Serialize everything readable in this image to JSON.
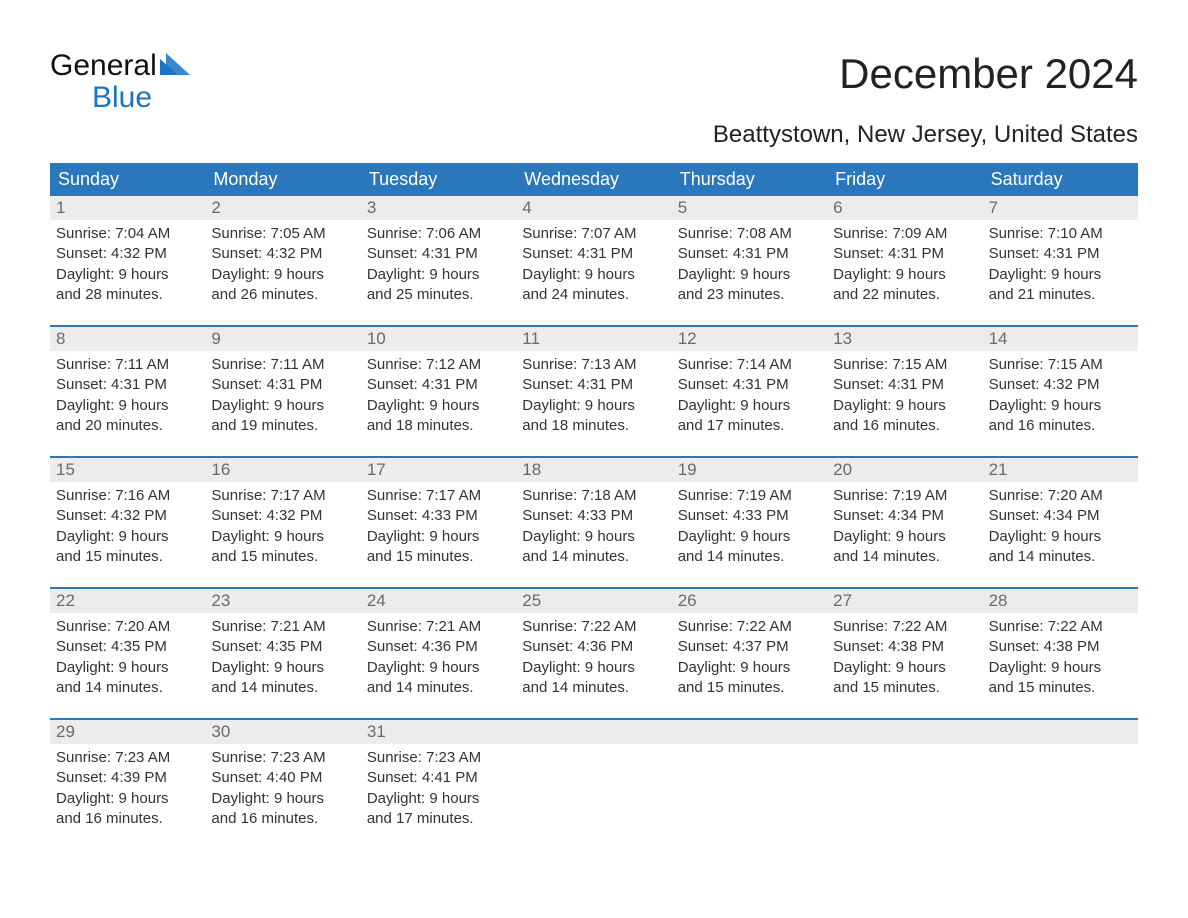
{
  "logo": {
    "word1": "General",
    "word2": "Blue"
  },
  "title": "December 2024",
  "location": "Beattystown, New Jersey, United States",
  "colors": {
    "header_bg": "#2b77bb",
    "header_text": "#ffffff",
    "daynum_bg": "#ececec",
    "daynum_text": "#6a6a6a",
    "body_text": "#333333",
    "logo_blue": "#1a73c7",
    "divider": "#2b77bb",
    "background": "#ffffff"
  },
  "typography": {
    "title_fontsize": 42,
    "location_fontsize": 24,
    "dow_fontsize": 18,
    "daynum_fontsize": 17,
    "cell_fontsize": 15,
    "logo_fontsize": 30
  },
  "days_of_week": [
    "Sunday",
    "Monday",
    "Tuesday",
    "Wednesday",
    "Thursday",
    "Friday",
    "Saturday"
  ],
  "labels": {
    "sunrise": "Sunrise:",
    "sunset": "Sunset:",
    "daylight": "Daylight:"
  },
  "weeks": [
    [
      {
        "d": "1",
        "sr": "7:04 AM",
        "ss": "4:32 PM",
        "dl1": "9 hours",
        "dl2": "and 28 minutes."
      },
      {
        "d": "2",
        "sr": "7:05 AM",
        "ss": "4:32 PM",
        "dl1": "9 hours",
        "dl2": "and 26 minutes."
      },
      {
        "d": "3",
        "sr": "7:06 AM",
        "ss": "4:31 PM",
        "dl1": "9 hours",
        "dl2": "and 25 minutes."
      },
      {
        "d": "4",
        "sr": "7:07 AM",
        "ss": "4:31 PM",
        "dl1": "9 hours",
        "dl2": "and 24 minutes."
      },
      {
        "d": "5",
        "sr": "7:08 AM",
        "ss": "4:31 PM",
        "dl1": "9 hours",
        "dl2": "and 23 minutes."
      },
      {
        "d": "6",
        "sr": "7:09 AM",
        "ss": "4:31 PM",
        "dl1": "9 hours",
        "dl2": "and 22 minutes."
      },
      {
        "d": "7",
        "sr": "7:10 AM",
        "ss": "4:31 PM",
        "dl1": "9 hours",
        "dl2": "and 21 minutes."
      }
    ],
    [
      {
        "d": "8",
        "sr": "7:11 AM",
        "ss": "4:31 PM",
        "dl1": "9 hours",
        "dl2": "and 20 minutes."
      },
      {
        "d": "9",
        "sr": "7:11 AM",
        "ss": "4:31 PM",
        "dl1": "9 hours",
        "dl2": "and 19 minutes."
      },
      {
        "d": "10",
        "sr": "7:12 AM",
        "ss": "4:31 PM",
        "dl1": "9 hours",
        "dl2": "and 18 minutes."
      },
      {
        "d": "11",
        "sr": "7:13 AM",
        "ss": "4:31 PM",
        "dl1": "9 hours",
        "dl2": "and 18 minutes."
      },
      {
        "d": "12",
        "sr": "7:14 AM",
        "ss": "4:31 PM",
        "dl1": "9 hours",
        "dl2": "and 17 minutes."
      },
      {
        "d": "13",
        "sr": "7:15 AM",
        "ss": "4:31 PM",
        "dl1": "9 hours",
        "dl2": "and 16 minutes."
      },
      {
        "d": "14",
        "sr": "7:15 AM",
        "ss": "4:32 PM",
        "dl1": "9 hours",
        "dl2": "and 16 minutes."
      }
    ],
    [
      {
        "d": "15",
        "sr": "7:16 AM",
        "ss": "4:32 PM",
        "dl1": "9 hours",
        "dl2": "and 15 minutes."
      },
      {
        "d": "16",
        "sr": "7:17 AM",
        "ss": "4:32 PM",
        "dl1": "9 hours",
        "dl2": "and 15 minutes."
      },
      {
        "d": "17",
        "sr": "7:17 AM",
        "ss": "4:33 PM",
        "dl1": "9 hours",
        "dl2": "and 15 minutes."
      },
      {
        "d": "18",
        "sr": "7:18 AM",
        "ss": "4:33 PM",
        "dl1": "9 hours",
        "dl2": "and 14 minutes."
      },
      {
        "d": "19",
        "sr": "7:19 AM",
        "ss": "4:33 PM",
        "dl1": "9 hours",
        "dl2": "and 14 minutes."
      },
      {
        "d": "20",
        "sr": "7:19 AM",
        "ss": "4:34 PM",
        "dl1": "9 hours",
        "dl2": "and 14 minutes."
      },
      {
        "d": "21",
        "sr": "7:20 AM",
        "ss": "4:34 PM",
        "dl1": "9 hours",
        "dl2": "and 14 minutes."
      }
    ],
    [
      {
        "d": "22",
        "sr": "7:20 AM",
        "ss": "4:35 PM",
        "dl1": "9 hours",
        "dl2": "and 14 minutes."
      },
      {
        "d": "23",
        "sr": "7:21 AM",
        "ss": "4:35 PM",
        "dl1": "9 hours",
        "dl2": "and 14 minutes."
      },
      {
        "d": "24",
        "sr": "7:21 AM",
        "ss": "4:36 PM",
        "dl1": "9 hours",
        "dl2": "and 14 minutes."
      },
      {
        "d": "25",
        "sr": "7:22 AM",
        "ss": "4:36 PM",
        "dl1": "9 hours",
        "dl2": "and 14 minutes."
      },
      {
        "d": "26",
        "sr": "7:22 AM",
        "ss": "4:37 PM",
        "dl1": "9 hours",
        "dl2": "and 15 minutes."
      },
      {
        "d": "27",
        "sr": "7:22 AM",
        "ss": "4:38 PM",
        "dl1": "9 hours",
        "dl2": "and 15 minutes."
      },
      {
        "d": "28",
        "sr": "7:22 AM",
        "ss": "4:38 PM",
        "dl1": "9 hours",
        "dl2": "and 15 minutes."
      }
    ],
    [
      {
        "d": "29",
        "sr": "7:23 AM",
        "ss": "4:39 PM",
        "dl1": "9 hours",
        "dl2": "and 16 minutes."
      },
      {
        "d": "30",
        "sr": "7:23 AM",
        "ss": "4:40 PM",
        "dl1": "9 hours",
        "dl2": "and 16 minutes."
      },
      {
        "d": "31",
        "sr": "7:23 AM",
        "ss": "4:41 PM",
        "dl1": "9 hours",
        "dl2": "and 17 minutes."
      },
      null,
      null,
      null,
      null
    ]
  ]
}
